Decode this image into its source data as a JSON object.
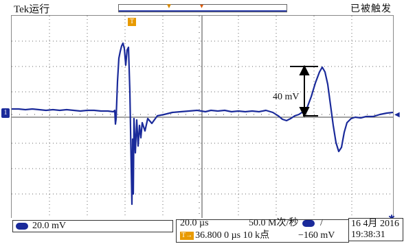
{
  "topbar": {
    "brand": "Tek",
    "run_state": "运行",
    "trigger_status": "已被触发"
  },
  "markers": {
    "channel_ground": "1",
    "trigger_position": "T"
  },
  "annotation": {
    "amplitude_label": "40 mV"
  },
  "bottombar": {
    "channel_scale": "20.0 mV",
    "time_scale": "20.0 µs",
    "time_position": "36.800 0 µs",
    "record_length": "10 k点",
    "sample_rate": "50.0 M次/秒",
    "trigger_edge_icon": "rising-edge-icon",
    "trigger_edge": "/",
    "trigger_level": "−160 mV",
    "date": "16 4月 2016",
    "time": "19:38:31"
  },
  "colors": {
    "trace": "#1a2a9a",
    "grid": "#555555",
    "trigger_marker": "#e89a00"
  }
}
